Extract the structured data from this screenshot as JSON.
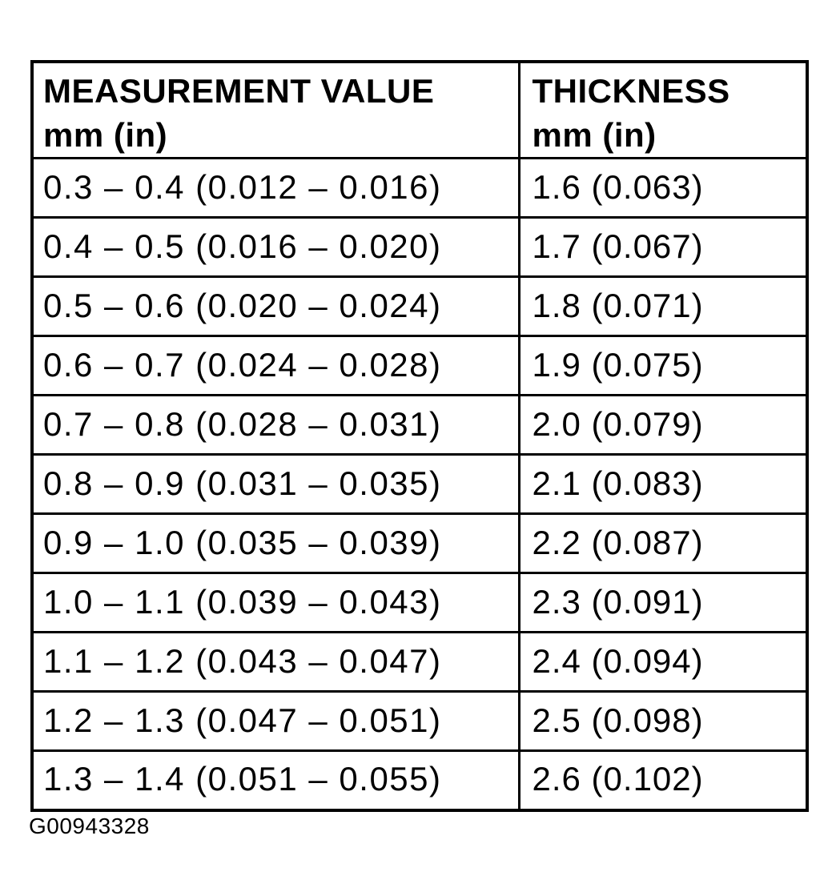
{
  "table": {
    "headers": {
      "measurement": {
        "line1": "MEASUREMENT VALUE",
        "line2": "mm (in)"
      },
      "thickness": {
        "line1": "THICKNESS",
        "line2": "mm (in)"
      }
    },
    "rows": [
      {
        "measurement": "0.3 – 0.4 (0.012 – 0.016)",
        "thickness": "1.6 (0.063)"
      },
      {
        "measurement": "0.4 – 0.5 (0.016 – 0.020)",
        "thickness": "1.7 (0.067)"
      },
      {
        "measurement": "0.5 – 0.6 (0.020 – 0.024)",
        "thickness": "1.8 (0.071)"
      },
      {
        "measurement": "0.6 – 0.7 (0.024 – 0.028)",
        "thickness": "1.9 (0.075)"
      },
      {
        "measurement": "0.7 – 0.8 (0.028 – 0.031)",
        "thickness": "2.0 (0.079)"
      },
      {
        "measurement": "0.8 – 0.9 (0.031 – 0.035)",
        "thickness": "2.1 (0.083)"
      },
      {
        "measurement": "0.9 – 1.0 (0.035 – 0.039)",
        "thickness": "2.2 (0.087)"
      },
      {
        "measurement": "1.0 – 1.1 (0.039 – 0.043)",
        "thickness": "2.3 (0.091)"
      },
      {
        "measurement": "1.1 – 1.2 (0.043 – 0.047)",
        "thickness": "2.4 (0.094)"
      },
      {
        "measurement": "1.2 – 1.3 (0.047 – 0.051)",
        "thickness": "2.5 (0.098)"
      },
      {
        "measurement": "1.3 – 1.4 (0.051 – 0.055)",
        "thickness": "2.6 (0.102)"
      }
    ]
  },
  "figure_code": "G00943328"
}
